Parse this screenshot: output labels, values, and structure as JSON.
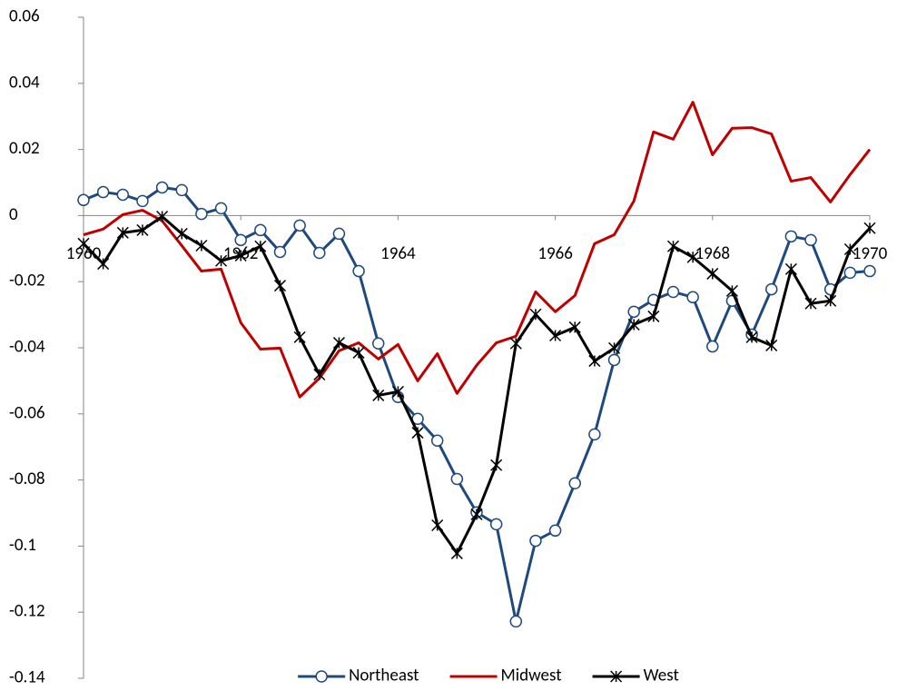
{
  "chart_data": {
    "type": "line",
    "x": [
      1960,
      1960.25,
      1960.5,
      1960.75,
      1961,
      1961.25,
      1961.5,
      1961.75,
      1962,
      1962.25,
      1962.5,
      1962.75,
      1963,
      1963.25,
      1963.5,
      1963.75,
      1964,
      1964.25,
      1964.5,
      1964.75,
      1965,
      1965.25,
      1965.5,
      1965.75,
      1966,
      1966.25,
      1966.5,
      1966.75,
      1967,
      1967.25,
      1967.5,
      1967.75,
      1968,
      1968.25,
      1968.5,
      1968.75,
      1969,
      1969.25,
      1969.5,
      1969.75,
      1970
    ],
    "series": [
      {
        "name": "Northeast",
        "color": "#1f497d",
        "marker": "circle",
        "values": [
          0.0047,
          0.0071,
          0.0063,
          0.0044,
          0.0085,
          0.0077,
          0.0005,
          0.0022,
          -0.0074,
          -0.0044,
          -0.011,
          -0.003,
          -0.0113,
          -0.0055,
          -0.0168,
          -0.0387,
          -0.0549,
          -0.0615,
          -0.0681,
          -0.0797,
          -0.0898,
          -0.0934,
          -0.1228,
          -0.0984,
          -0.0953,
          -0.081,
          -0.0662,
          -0.0437,
          -0.0291,
          -0.0255,
          -0.0231,
          -0.0247,
          -0.0396,
          -0.0258,
          -0.036,
          -0.0223,
          -0.0063,
          -0.0074,
          -0.0223,
          -0.0173,
          -0.0168
        ]
      },
      {
        "name": "Midwest",
        "color": "#c00000",
        "marker": "none",
        "values": [
          -0.0058,
          -0.0041,
          0.0003,
          0.0016,
          -0.0016,
          -0.0091,
          -0.0168,
          -0.0162,
          -0.0324,
          -0.0404,
          -0.0401,
          -0.0549,
          -0.0492,
          -0.0409,
          -0.0385,
          -0.0434,
          -0.039,
          -0.05,
          -0.0418,
          -0.0538,
          -0.0453,
          -0.0385,
          -0.0365,
          -0.0231,
          -0.0291,
          -0.0242,
          -0.0085,
          -0.0058,
          0.0044,
          0.0253,
          0.0231,
          0.0343,
          0.0184,
          0.0264,
          0.0266,
          0.0247,
          0.0104,
          0.0115,
          0.0041,
          0.0124,
          0.02
        ]
      },
      {
        "name": "West",
        "color": "#000000",
        "marker": "star",
        "values": [
          -0.0085,
          -0.0146,
          -0.0052,
          -0.0044,
          -0.0003,
          -0.0055,
          -0.0091,
          -0.0137,
          -0.0121,
          -0.0093,
          -0.0212,
          -0.0368,
          -0.0481,
          -0.0385,
          -0.0415,
          -0.0544,
          -0.0533,
          -0.0657,
          -0.0937,
          -0.1022,
          -0.0904,
          -0.0755,
          -0.0387,
          -0.0299,
          -0.0363,
          -0.0338,
          -0.044,
          -0.0401,
          -0.033,
          -0.0305,
          -0.0093,
          -0.0126,
          -0.0176,
          -0.0228,
          -0.0368,
          -0.0393,
          -0.0162,
          -0.0266,
          -0.0258,
          -0.0102,
          -0.0038
        ]
      }
    ],
    "xlim": [
      1960,
      1970
    ],
    "xticks": [
      1960,
      1962,
      1964,
      1966,
      1968,
      1970
    ],
    "ylim": [
      -0.14,
      0.06
    ],
    "yticks": [
      -0.14,
      -0.12,
      -0.1,
      -0.08,
      -0.06,
      -0.04,
      -0.02,
      0,
      0.02,
      0.04,
      0.06
    ],
    "grid": false,
    "legend": "bottom"
  }
}
